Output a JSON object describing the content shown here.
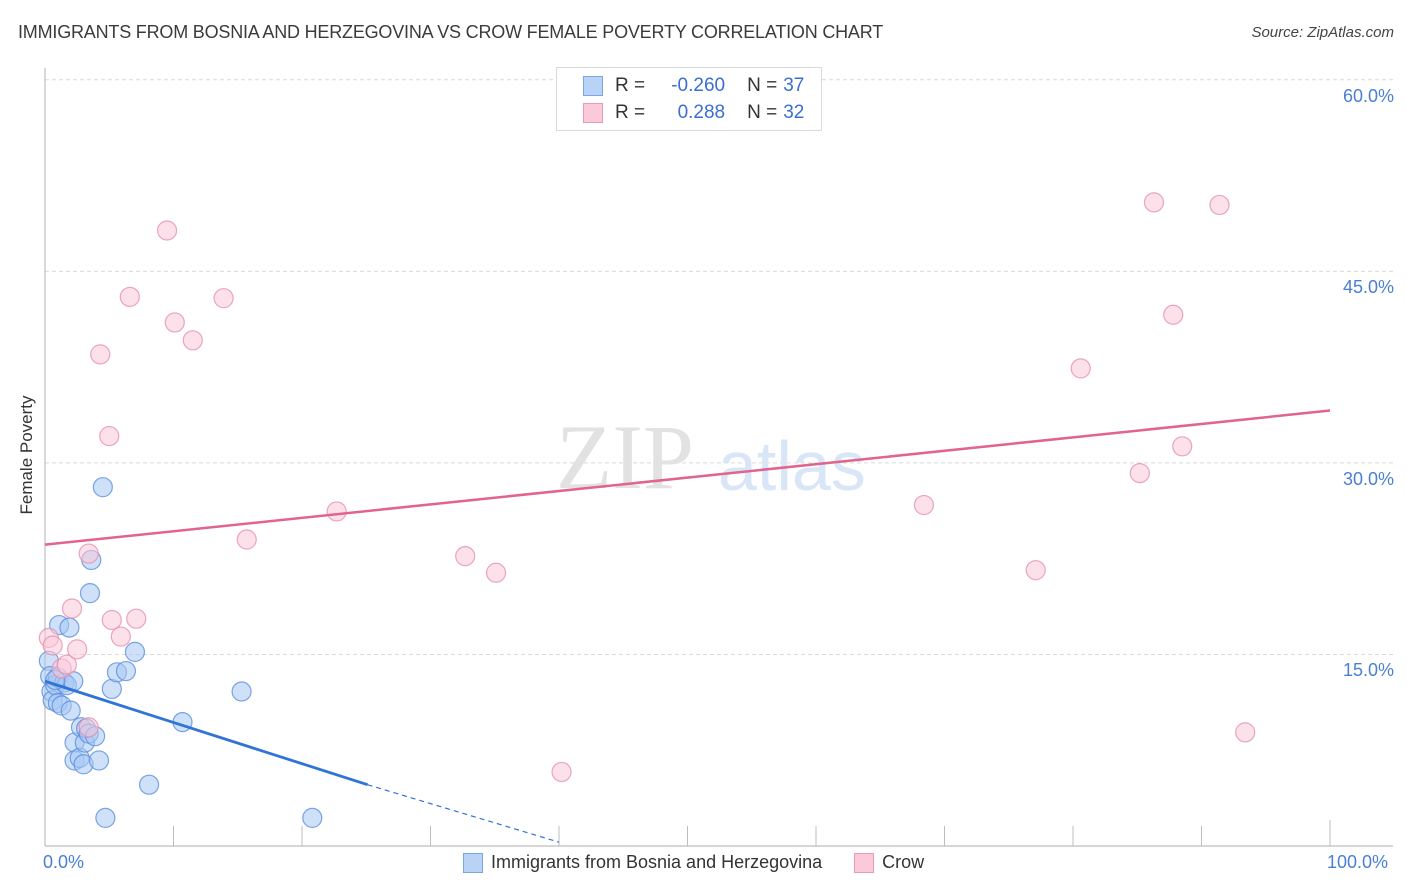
{
  "title": "IMMIGRANTS FROM BOSNIA AND HERZEGOVINA VS CROW FEMALE POVERTY CORRELATION CHART",
  "source": "Source: ZipAtlas.com",
  "watermark": {
    "zip": "ZIP",
    "atlas": "atlas"
  },
  "stats_box": {
    "rows": [
      {
        "r_label": "R =",
        "r_value": "-0.260",
        "n_label": "N =",
        "n_value": "37",
        "color": "#a8c8f4",
        "border": "#6d9de0"
      },
      {
        "r_label": "R =",
        "r_value": "0.288",
        "n_label": "N =",
        "n_value": "32",
        "color": "#f9c3d3",
        "border": "#e68aa8"
      }
    ]
  },
  "legend": {
    "items": [
      {
        "label": "Immigrants from Bosnia and Herzegovina",
        "color": "#a8c8f4",
        "border": "#6d9de0"
      },
      {
        "label": "Crow",
        "color": "#f9c3d3",
        "border": "#e68aa8"
      }
    ]
  },
  "axes": {
    "ylabel": "Female Poverty",
    "y_ticks": [
      "60.0%",
      "45.0%",
      "30.0%",
      "15.0%"
    ],
    "x_ticks": [
      "0.0%",
      "100.0%"
    ]
  },
  "colors": {
    "blue_fill": "#a8c8f4",
    "blue_stroke": "#5b8fdc",
    "blue_line": "#2f74d6",
    "pink_fill": "#f9c8d8",
    "pink_stroke": "#e690ae",
    "pink_line": "#e0648c",
    "grid": "#d9d9d9",
    "tick_label": "#4a7fd4"
  },
  "chart_data": {
    "type": "scatter",
    "title": "IMMIGRANTS FROM BOSNIA AND HERZEGOVINA VS CROW FEMALE POVERTY CORRELATION CHART",
    "xlabel": "",
    "ylabel": "Female Poverty",
    "xlim": [
      0,
      100
    ],
    "ylim": [
      0,
      62
    ],
    "y_gridlines": [
      15,
      30,
      45,
      60
    ],
    "grid": true,
    "legend_position": "bottom",
    "series": [
      {
        "name": "Immigrants from Bosnia and Herzegovina",
        "R": -0.26,
        "N": 37,
        "points": [
          [
            0.3,
            14.5
          ],
          [
            0.4,
            13.3
          ],
          [
            0.5,
            12.1
          ],
          [
            0.6,
            11.4
          ],
          [
            0.8,
            12.6
          ],
          [
            1.0,
            11.2
          ],
          [
            1.0,
            13.2
          ],
          [
            1.1,
            17.3
          ],
          [
            1.3,
            11.0
          ],
          [
            1.5,
            12.8
          ],
          [
            1.7,
            12.6
          ],
          [
            1.9,
            17.1
          ],
          [
            2.0,
            10.6
          ],
          [
            2.2,
            12.9
          ],
          [
            2.3,
            8.1
          ],
          [
            2.3,
            6.7
          ],
          [
            2.7,
            6.9
          ],
          [
            2.8,
            9.3
          ],
          [
            3.0,
            6.4
          ],
          [
            3.1,
            8.1
          ],
          [
            3.2,
            9.2
          ],
          [
            3.4,
            8.8
          ],
          [
            3.5,
            19.8
          ],
          [
            3.6,
            22.4
          ],
          [
            3.9,
            8.6
          ],
          [
            4.2,
            6.7
          ],
          [
            4.5,
            28.1
          ],
          [
            4.7,
            2.2
          ],
          [
            5.2,
            12.3
          ],
          [
            5.6,
            13.6
          ],
          [
            6.3,
            13.7
          ],
          [
            7.0,
            15.2
          ],
          [
            8.1,
            4.8
          ],
          [
            10.7,
            9.7
          ],
          [
            15.3,
            12.1
          ],
          [
            20.8,
            2.2
          ],
          [
            0.8,
            13.0
          ]
        ],
        "trend": {
          "x": [
            0,
            25.1
          ],
          "y": [
            12.9,
            4.8
          ],
          "dashed_extension_to": [
            40,
            0.3
          ]
        }
      },
      {
        "name": "Crow",
        "R": 0.288,
        "N": 32,
        "points": [
          [
            0.3,
            16.3
          ],
          [
            0.6,
            15.7
          ],
          [
            1.3,
            13.9
          ],
          [
            1.7,
            14.2
          ],
          [
            2.1,
            18.6
          ],
          [
            2.5,
            15.4
          ],
          [
            3.4,
            9.3
          ],
          [
            3.4,
            22.9
          ],
          [
            4.3,
            38.5
          ],
          [
            5.0,
            32.1
          ],
          [
            5.2,
            17.7
          ],
          [
            5.9,
            16.4
          ],
          [
            6.6,
            43.0
          ],
          [
            7.1,
            17.8
          ],
          [
            9.5,
            48.2
          ],
          [
            10.1,
            41.0
          ],
          [
            11.5,
            39.6
          ],
          [
            13.9,
            42.9
          ],
          [
            15.7,
            24.0
          ],
          [
            22.7,
            26.2
          ],
          [
            32.7,
            22.7
          ],
          [
            35.1,
            21.4
          ],
          [
            40.2,
            5.8
          ],
          [
            68.4,
            26.7
          ],
          [
            77.1,
            21.6
          ],
          [
            80.6,
            37.4
          ],
          [
            85.2,
            29.2
          ],
          [
            86.3,
            50.4
          ],
          [
            87.8,
            41.6
          ],
          [
            88.5,
            31.3
          ],
          [
            91.4,
            50.2
          ],
          [
            93.4,
            8.9
          ]
        ],
        "trend": {
          "x": [
            0,
            100
          ],
          "y": [
            23.6,
            34.1
          ]
        }
      }
    ]
  }
}
